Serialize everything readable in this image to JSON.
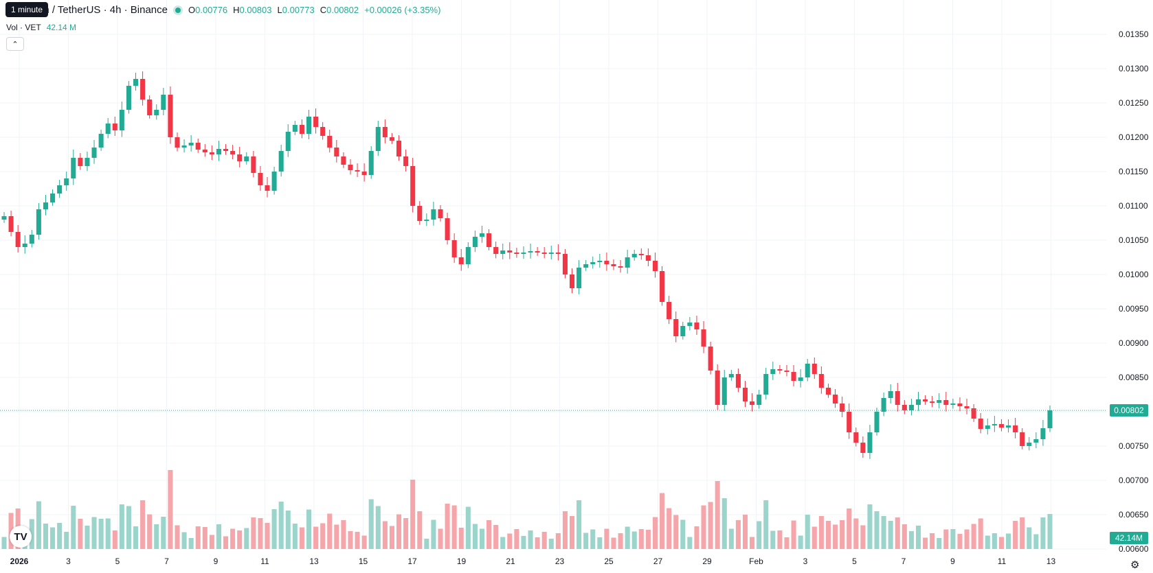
{
  "header": {
    "symbol": "in / TetherUS · 4h · Binance",
    "tooltip": "1 minute",
    "open_label": "O",
    "open": "0.00776",
    "high_label": "H",
    "high": "0.00803",
    "low_label": "L",
    "low": "0.00773",
    "close_label": "C",
    "close": "0.00802",
    "change": "+0.00026 (+3.35%)"
  },
  "volume": {
    "label": "Vol · VET",
    "value": "42.14 M",
    "tag": "42.14M"
  },
  "price_tag": "0.00802",
  "colors": {
    "up": "#22ab94",
    "down": "#f23645",
    "up_volume": "#9ad4cb",
    "down_volume": "#f5a6ab",
    "grid": "#f0f3fa"
  },
  "icons": {
    "collapse": "chevron-up-icon",
    "logo": "tradingview-logo-icon",
    "settings": "gear-icon"
  },
  "chart_data": {
    "type": "candlestick",
    "interval": "4h",
    "y_ticks": [
      "0.01350",
      "0.01300",
      "0.01250",
      "0.01200",
      "0.01150",
      "0.01100",
      "0.01050",
      "0.01000",
      "0.00950",
      "0.00900",
      "0.00850",
      "0.00800",
      "0.00750",
      "0.00700",
      "0.00650",
      "0.00600"
    ],
    "ylim": [
      0.006,
      0.0135
    ],
    "x_ticks": [
      "2026",
      "3",
      "5",
      "7",
      "9",
      "11",
      "13",
      "15",
      "17",
      "19",
      "21",
      "23",
      "25",
      "27",
      "29",
      "Feb",
      "3",
      "5",
      "7",
      "9",
      "11",
      "13"
    ],
    "last_price": 0.00802,
    "closes": [
      0.01085,
      0.01062,
      0.0104,
      0.01045,
      0.01058,
      0.01095,
      0.01105,
      0.01118,
      0.0113,
      0.0114,
      0.0117,
      0.01158,
      0.0117,
      0.01185,
      0.01205,
      0.0122,
      0.0121,
      0.0124,
      0.01275,
      0.01285,
      0.01255,
      0.01232,
      0.0124,
      0.01262,
      0.012,
      0.01185,
      0.01188,
      0.01192,
      0.01182,
      0.01178,
      0.01175,
      0.01183,
      0.0118,
      0.01175,
      0.01165,
      0.01172,
      0.01148,
      0.0113,
      0.01122,
      0.0115,
      0.0118,
      0.01208,
      0.01218,
      0.01205,
      0.0123,
      0.01215,
      0.01202,
      0.01185,
      0.01172,
      0.0116,
      0.01152,
      0.0115,
      0.01145,
      0.0118,
      0.01215,
      0.012,
      0.01195,
      0.01172,
      0.01158,
      0.011,
      0.01078,
      0.0108,
      0.01095,
      0.01082,
      0.0105,
      0.01025,
      0.01015,
      0.0104,
      0.01055,
      0.0106,
      0.0104,
      0.0103,
      0.01035,
      0.01032,
      0.0103,
      0.01032,
      0.01034,
      0.01032,
      0.0103,
      0.01032,
      0.0103,
      0.01,
      0.0098,
      0.0101,
      0.01015,
      0.01018,
      0.0102,
      0.01015,
      0.01012,
      0.0101,
      0.01025,
      0.0103,
      0.01028,
      0.0102,
      0.01005,
      0.0096,
      0.00935,
      0.0091,
      0.00925,
      0.0093,
      0.0092,
      0.00895,
      0.0086,
      0.0081,
      0.0085,
      0.00855,
      0.00835,
      0.00815,
      0.0081,
      0.00825,
      0.00855,
      0.00862,
      0.0086,
      0.00858,
      0.00845,
      0.0085,
      0.0087,
      0.00855,
      0.00835,
      0.00825,
      0.00812,
      0.008,
      0.0077,
      0.00755,
      0.0074,
      0.0077,
      0.008,
      0.0082,
      0.0083,
      0.0081,
      0.00802,
      0.0081,
      0.00818,
      0.00815,
      0.00813,
      0.00817,
      0.0081,
      0.00812,
      0.00808,
      0.00805,
      0.0079,
      0.00775,
      0.0078,
      0.00782,
      0.00777,
      0.0078,
      0.0077,
      0.0075,
      0.00755,
      0.0076,
      0.00776,
      0.00802
    ]
  }
}
